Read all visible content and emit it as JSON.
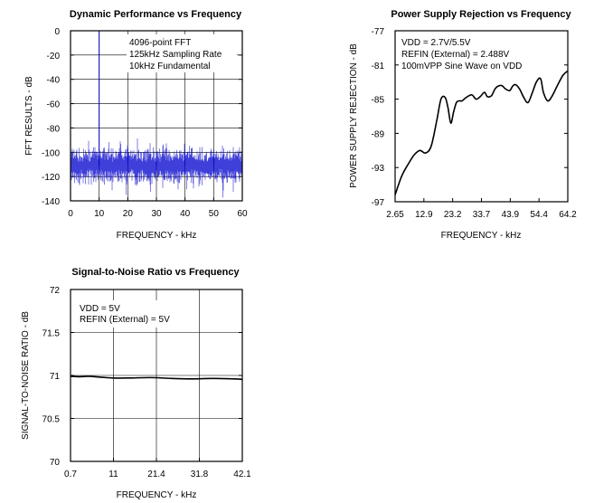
{
  "chart_data": [
    {
      "type": "line",
      "title": "Dynamic Performance vs Frequency",
      "xlabel": "FREQUENCY - kHz",
      "ylabel": "FFT RESULTS - dB",
      "xlim": [
        0,
        60
      ],
      "ylim": [
        -140,
        0
      ],
      "xticks": [
        "0",
        "10",
        "20",
        "30",
        "40",
        "50",
        "60"
      ],
      "yticks": [
        "0",
        "-20",
        "-40",
        "-60",
        "-80",
        "-100",
        "-120",
        "-140"
      ],
      "grid": true,
      "annotations": [
        "4096-point FFT",
        "125kHz Sampling Rate",
        "10kHz Fundamental"
      ],
      "series": [
        {
          "color": "#0000cc",
          "noise_floor_db": [
            -108,
            -114
          ],
          "fundamental": {
            "x": 10,
            "y": 0
          },
          "spurs": [
            {
              "x": 20,
              "y": -96
            },
            {
              "x": 30,
              "y": -100
            },
            {
              "x": 40,
              "y": -101
            },
            {
              "x": 50,
              "y": -102
            }
          ]
        }
      ]
    },
    {
      "type": "line",
      "title": "Power Supply Rejection vs Frequency",
      "xlabel": "FREQUENCY - kHz",
      "ylabel": "POWER SUPPLY REJECTION - dB",
      "xlim": [
        2.65,
        64.2
      ],
      "ylim": [
        -97,
        -77
      ],
      "xticks": [
        "2.65",
        "12.9",
        "23.2",
        "33.7",
        "43.9",
        "54.4",
        "64.2"
      ],
      "yticks": [
        "-77",
        "-81",
        "-85",
        "-89",
        "-93",
        "-97"
      ],
      "grid": false,
      "annotations": [
        "VDD = 2.7V/5.5V",
        "REFIN (External) = 2.488V",
        "100mVPP Sine Wave on VDD"
      ],
      "series": [
        {
          "color": "#000000",
          "x": [
            2.65,
            5.0,
            7.5,
            9.5,
            11.5,
            13.5,
            15.5,
            17.5,
            19.0,
            20.5,
            21.5,
            22.5,
            23.5,
            24.5,
            25.5,
            26.5,
            28.0,
            30.0,
            31.5,
            33.0,
            34.5,
            35.5,
            37.0,
            38.5,
            40.5,
            42.0,
            43.5,
            44.5,
            45.5,
            47.0,
            48.5,
            50.0,
            51.5,
            53.0,
            54.5,
            55.5,
            57.0,
            58.5,
            60.5,
            62.5,
            64.2
          ],
          "y": [
            -96.2,
            -94.0,
            -92.5,
            -91.5,
            -91.0,
            -91.3,
            -90.5,
            -87.5,
            -85.0,
            -84.8,
            -86.0,
            -87.8,
            -86.5,
            -85.4,
            -85.2,
            -85.2,
            -84.8,
            -84.5,
            -85.0,
            -84.7,
            -84.2,
            -84.7,
            -84.6,
            -83.7,
            -83.4,
            -83.8,
            -84.0,
            -83.5,
            -83.3,
            -83.8,
            -84.8,
            -85.4,
            -84.3,
            -83.0,
            -82.6,
            -84.2,
            -85.2,
            -84.7,
            -83.4,
            -82.2,
            -81.7
          ]
        }
      ]
    },
    {
      "type": "line",
      "title": "Signal-to-Noise Ratio vs Frequency",
      "xlabel": "FREQUENCY - kHz",
      "ylabel": "SIGNAL-TO-NOISE RATIO - dB",
      "xlim": [
        0.7,
        42.1
      ],
      "ylim": [
        70,
        72
      ],
      "xticks": [
        "0.7",
        "11",
        "21.4",
        "31.8",
        "42.1"
      ],
      "yticks": [
        "72",
        "71.5",
        "71",
        "70.5",
        "70"
      ],
      "grid": true,
      "annotations": [
        "VDD = 5V",
        "REFIN (External) = 5V"
      ],
      "series": [
        {
          "color": "#000000",
          "x": [
            0.7,
            3,
            5,
            8,
            11,
            15,
            20,
            25,
            30,
            35,
            40,
            42.1
          ],
          "y": [
            70.99,
            70.985,
            70.99,
            70.98,
            70.97,
            70.97,
            70.975,
            70.965,
            70.96,
            70.965,
            70.96,
            70.955
          ]
        }
      ]
    }
  ]
}
